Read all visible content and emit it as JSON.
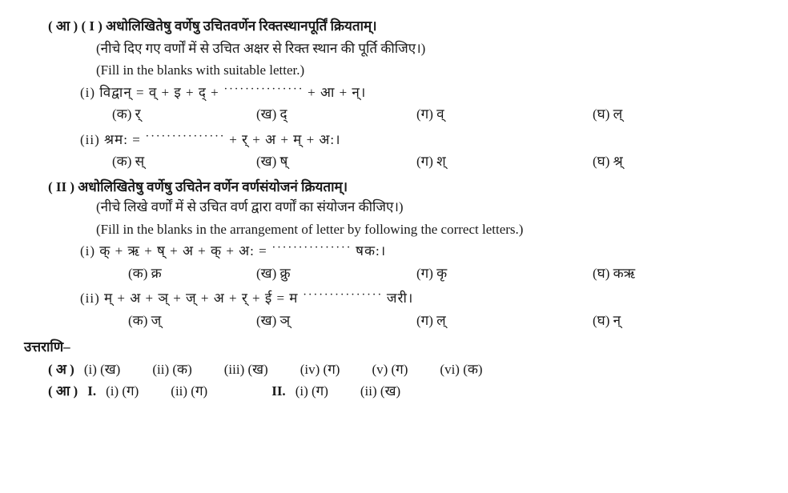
{
  "sectionA": {
    "partI": {
      "header": "( आ ) ( I ) अधोलिखितेषु वर्णेषु उचितवर्णेन रिक्तस्थानपूर्तिं क्रियताम्।",
      "hindi": "(नीचे दिए गए वर्णों में से उचित अक्षर से रिक्त स्थान की पूर्ति कीजिए।)",
      "english": "(Fill in the blanks with suitable letter.)",
      "q1": {
        "prompt": "(i) विद्वान्  =  व् + इ + द् + ˙˙˙˙˙˙˙˙˙˙˙˙˙˙˙ + आ + न्।",
        "opts": {
          "a": "(क) र्",
          "b": "(ख) द्",
          "c": "(ग) व्",
          "d": "(घ) ल्"
        }
      },
      "q2": {
        "prompt": "(ii) श्रम:  =  ˙˙˙˙˙˙˙˙˙˙˙˙˙˙˙ + र् + अ + म् + अ:।",
        "opts": {
          "a": "(क) स्",
          "b": "(ख) ष्",
          "c": "(ग) श्",
          "d": "(घ) श्र्"
        }
      }
    },
    "partII": {
      "header": "( II ) अधोलिखितेषु वर्णेषु उचितेन वर्णेन वर्णसंयोजनं क्रियताम्।",
      "hindi": "(नीचे लिखे वर्णों में से उचित वर्ण द्वारा वर्णों का संयोजन कीजिए।)",
      "english": "(Fill in the blanks in the arrangement of letter by following the correct letters.)",
      "q1": {
        "prompt": "(i) क् + ऋ + ष् + अ + क् + अ:  =  ˙˙˙˙˙˙˙˙˙˙˙˙˙˙˙ षक:।",
        "opts": {
          "a": "(क) क्र",
          "b": "(ख) क्रु",
          "c": "(ग) कृ",
          "d": "(घ) कऋ"
        }
      },
      "q2": {
        "prompt": "(ii) म् + अ + ञ् + ज् + अ + र् + ई = म ˙˙˙˙˙˙˙˙˙˙˙˙˙˙˙ जरी।",
        "opts": {
          "a": "(क) ज्",
          "b": "(ख) ञ्",
          "c": "(ग) ल्",
          "d": "(घ) न्"
        }
      }
    }
  },
  "answers": {
    "title": "उत्तराणि–",
    "rowA": {
      "label": "( अ )",
      "items": [
        "(i) (ख)",
        "(ii) (क)",
        "(iii) (ख)",
        "(iv) (ग)",
        "(v) (ग)",
        "(vi) (क)"
      ]
    },
    "rowB": {
      "label": "( आ )",
      "partI_label": "I.",
      "partI_items": [
        "(i) (ग)",
        "(ii) (ग)"
      ],
      "partII_label": "II.",
      "partII_items": [
        "(i) (ग)",
        "(ii) (ख)"
      ]
    }
  }
}
